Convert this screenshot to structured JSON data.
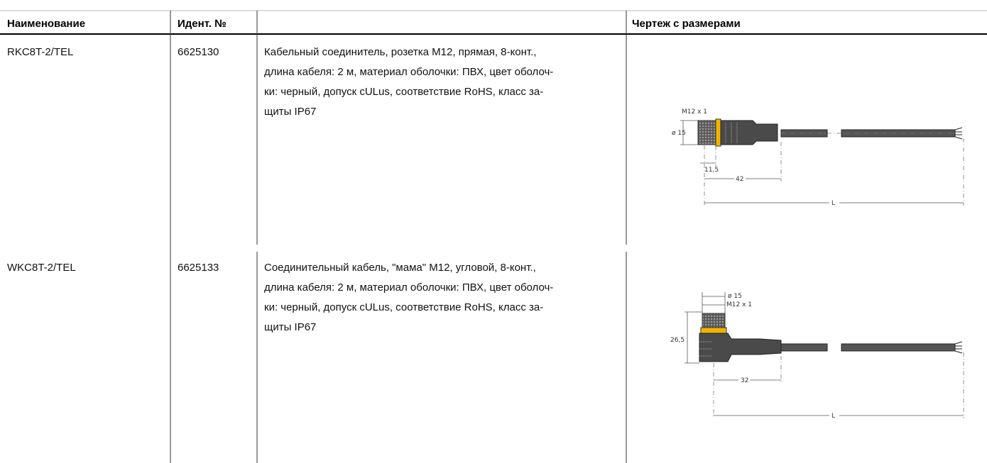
{
  "header": {
    "name": "Наименование",
    "ident": "Идент. №",
    "drawing": "Чертеж с размерами"
  },
  "rows": [
    {
      "name": "RKC8T-2/TEL",
      "ident": "6625130",
      "description": [
        "Кабельный соединитель, розетка M12, прямая, 8-конт.,",
        "длина кабеля: 2 м, материал оболочки: ПВХ, цвет оболоч-",
        "ки: черный, допуск cULus, соответствие RoHS, класс за-",
        "щиты IP67"
      ],
      "drawing": {
        "thread": "M12 x 1",
        "diameter": "ø 15",
        "nut_length": "11,5",
        "length": "42",
        "cable": "L"
      }
    },
    {
      "name": "WKC8T-2/TEL",
      "ident": "6625133",
      "description": [
        "Соединительный кабель, \"мама\" M12, угловой, 8-конт.,",
        "длина кабеля: 2 м, материал оболочки: ПВХ, цвет оболоч-",
        "ки: черный, допуск cULus, соответствие RoHS, класс за-",
        "щиты IP67"
      ],
      "drawing": {
        "diameter": "ø 15",
        "thread": "M12 x 1",
        "height": "26,5",
        "length": "32",
        "cable": "L"
      }
    }
  ]
}
